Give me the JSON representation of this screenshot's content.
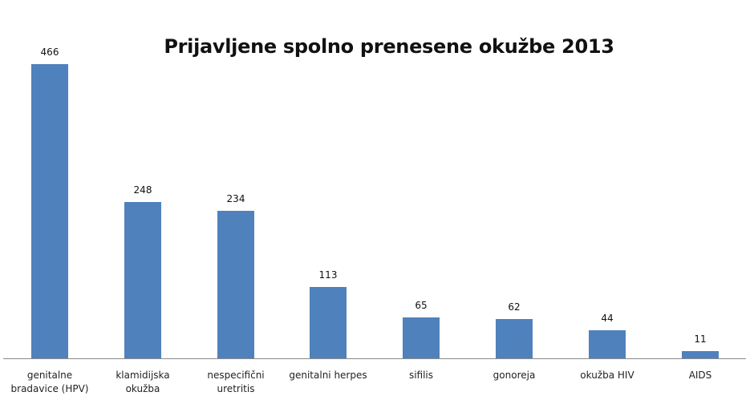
{
  "chart_data": {
    "type": "bar",
    "title": "Prijavljene spolno prenesene okužbe 2013",
    "xlabel": "",
    "ylabel": "",
    "categories": [
      "genitalne bradavice (HPV)",
      "klamidijska okužba",
      "nespecifični uretritis",
      "genitalni herpes",
      "sifilis",
      "gonoreja",
      "okužba HIV",
      "AIDS"
    ],
    "category_lines": [
      [
        "genitalne",
        "bradavice (HPV)"
      ],
      [
        "klamidijska",
        "okužba"
      ],
      [
        "nespecifični",
        "uretritis"
      ],
      [
        "genitalni herpes"
      ],
      [
        "sifilis"
      ],
      [
        "gonoreja"
      ],
      [
        "okužba HIV"
      ],
      [
        "AIDS"
      ]
    ],
    "values": [
      466,
      248,
      234,
      113,
      65,
      62,
      44,
      11
    ],
    "data_labels": [
      "466",
      "248",
      "234",
      "113",
      "65",
      "62",
      "44",
      "11"
    ],
    "ylim": [
      0,
      466
    ],
    "grid": false,
    "legend": null,
    "bar_color": "#4f81bd"
  }
}
